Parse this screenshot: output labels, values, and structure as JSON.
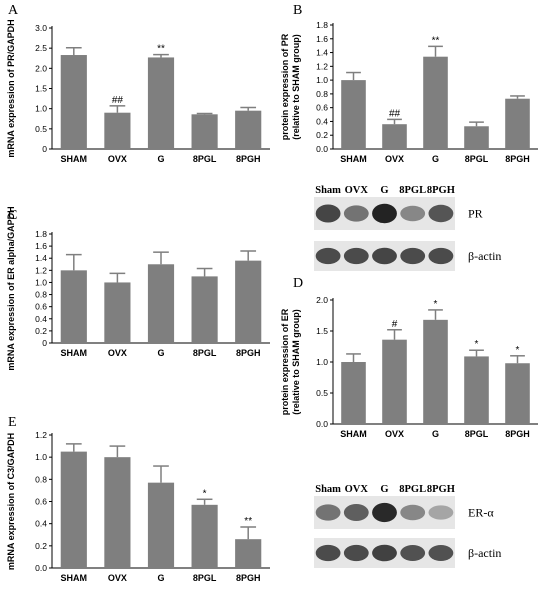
{
  "chart_data": [
    {
      "panel": "A",
      "type": "bar",
      "categories": [
        "SHAM",
        "OVX",
        "G",
        "8PGL",
        "8PGH"
      ],
      "values": [
        2.33,
        0.9,
        2.27,
        0.86,
        0.95
      ],
      "errors": [
        0.18,
        0.17,
        0.07,
        0.02,
        0.08
      ],
      "annotations": [
        "",
        "##",
        "**",
        "",
        ""
      ],
      "ylabel": "mRNA expression of PR/GAPDH",
      "ylim": [
        0,
        3.0
      ],
      "yticks": [
        "0",
        "0.5",
        "1.0",
        "1.5",
        "2.0",
        "2.5",
        "3.0"
      ],
      "color": "#7f7f7f"
    },
    {
      "panel": "B",
      "type": "bar",
      "categories": [
        "SHAM",
        "OVX",
        "G",
        "8PGL",
        "8PGH"
      ],
      "values": [
        1.0,
        0.36,
        1.34,
        0.33,
        0.73
      ],
      "errors": [
        0.11,
        0.07,
        0.15,
        0.06,
        0.04
      ],
      "annotations": [
        "",
        "##",
        "**",
        "",
        ""
      ],
      "ylabel": "protein expression of PR (relative to SHAM group)",
      "ylabel_lines": [
        "protein expression of PR",
        "(relative to SHAM group)"
      ],
      "ylim": [
        0,
        1.8
      ],
      "yticks": [
        "0.0",
        "0.2",
        "0.4",
        "0.6",
        "0.8",
        "1.0",
        "1.2",
        "1.4",
        "1.6",
        "1.8"
      ],
      "color": "#7f7f7f"
    },
    {
      "panel": "C",
      "type": "bar",
      "categories": [
        "SHAM",
        "OVX",
        "G",
        "8PGL",
        "8PGH"
      ],
      "values": [
        1.2,
        1.0,
        1.3,
        1.1,
        1.36
      ],
      "errors": [
        0.26,
        0.15,
        0.2,
        0.13,
        0.16
      ],
      "annotations": [
        "",
        "",
        "",
        "",
        ""
      ],
      "ylabel": "mRNA expression of ER alpha/GAPDH",
      "ylim": [
        0,
        1.8
      ],
      "yticks": [
        "0",
        "0.2",
        "0.4",
        "0.6",
        "0.8",
        "1.0",
        "1.2",
        "1.4",
        "1.6",
        "1.8"
      ],
      "color": "#7f7f7f"
    },
    {
      "panel": "D",
      "type": "bar",
      "categories": [
        "SHAM",
        "OVX",
        "G",
        "8PGL",
        "8PGH"
      ],
      "values": [
        1.0,
        1.36,
        1.68,
        1.09,
        0.98
      ],
      "errors": [
        0.13,
        0.16,
        0.16,
        0.1,
        0.12
      ],
      "annotations": [
        "",
        "#",
        "*",
        "*",
        "*"
      ],
      "ylabel": "protein expression of ER (relative to SHAM group)",
      "ylabel_lines": [
        "protein expression of ER",
        "(relative to SHAM group)"
      ],
      "ylim": [
        0,
        2.0
      ],
      "yticks": [
        "0.0",
        "0.5",
        "1.0",
        "1.5",
        "2.0"
      ],
      "color": "#7f7f7f"
    },
    {
      "panel": "E",
      "type": "bar",
      "categories": [
        "SHAM",
        "OVX",
        "G",
        "8PGL",
        "8PGH"
      ],
      "values": [
        1.05,
        1.0,
        0.77,
        0.57,
        0.26
      ],
      "errors": [
        0.07,
        0.1,
        0.15,
        0.05,
        0.11
      ],
      "annotations": [
        "",
        "",
        "",
        "*",
        "**"
      ],
      "ylabel": "mRNA expression of C3/GAPDH",
      "ylim": [
        0,
        1.2
      ],
      "yticks": [
        "0.0",
        "0.2",
        "0.4",
        "0.6",
        "0.8",
        "1.0",
        "1.2"
      ],
      "color": "#7f7f7f"
    }
  ],
  "blots": [
    {
      "panel": "B",
      "lanes": [
        "Sham",
        "OVX",
        "G",
        "8PGL",
        "8PGH"
      ],
      "rows": [
        {
          "name": "PR",
          "intensity": [
            0.78,
            0.55,
            0.95,
            0.45,
            0.7
          ]
        },
        {
          "name": "β-actin",
          "intensity": [
            0.75,
            0.75,
            0.78,
            0.75,
            0.75
          ]
        }
      ]
    },
    {
      "panel": "D",
      "lanes": [
        "Sham",
        "OVX",
        "G",
        "8PGL",
        "8PGH"
      ],
      "rows": [
        {
          "name": "ER-α",
          "intensity": [
            0.55,
            0.65,
            0.92,
            0.45,
            0.3
          ]
        },
        {
          "name": "β-actin",
          "intensity": [
            0.75,
            0.75,
            0.8,
            0.72,
            0.72
          ]
        }
      ]
    }
  ],
  "panel_letters": [
    "A",
    "B",
    "C",
    "D",
    "E"
  ]
}
